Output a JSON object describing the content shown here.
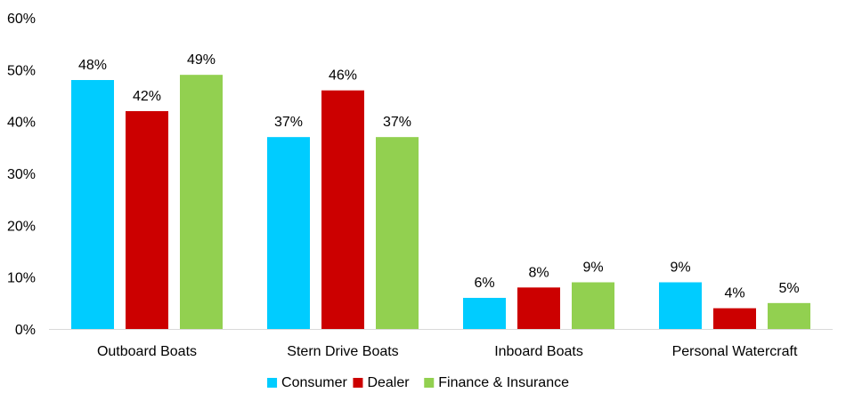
{
  "chart_data": {
    "type": "bar",
    "categories": [
      "Outboard Boats",
      "Stern Drive Boats",
      "Inboard Boats",
      "Personal Watercraft"
    ],
    "series": [
      {
        "name": "Consumer",
        "color": "#00CCFF",
        "values": [
          48,
          37,
          6,
          9
        ],
        "labels": [
          "48%",
          "37%",
          "6%",
          "9%"
        ]
      },
      {
        "name": "Dealer",
        "color": "#CC0000",
        "values": [
          42,
          46,
          8,
          4
        ],
        "labels": [
          "42%",
          "46%",
          "8%",
          "4%"
        ]
      },
      {
        "name": "Finance & Insurance",
        "color": "#92D050",
        "values": [
          49,
          37,
          9,
          5
        ],
        "labels": [
          "49%",
          "37%",
          "9%",
          "5%"
        ]
      }
    ],
    "ylim": [
      0,
      60
    ],
    "yticks": [
      0,
      10,
      20,
      30,
      40,
      50,
      60
    ],
    "ytick_labels": [
      "0%",
      "10%",
      "20%",
      "30%",
      "40%",
      "50%",
      "60%"
    ],
    "grid": false,
    "legend": "bottom-center"
  }
}
